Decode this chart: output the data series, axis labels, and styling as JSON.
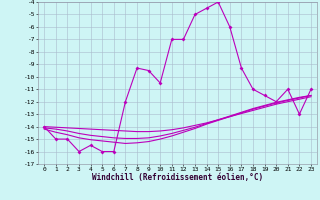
{
  "xlabel": "Windchill (Refroidissement éolien,°C)",
  "x": [
    0,
    1,
    2,
    3,
    4,
    5,
    6,
    7,
    8,
    9,
    10,
    11,
    12,
    13,
    14,
    15,
    16,
    17,
    18,
    19,
    20,
    21,
    22,
    23
  ],
  "windchill": [
    -14,
    -15,
    -15,
    -16,
    -15.5,
    -16,
    -16,
    -12,
    -9.3,
    -9.5,
    -10.5,
    -7,
    -7,
    -5,
    -4.5,
    -4,
    -6,
    -9.3,
    -11,
    -11.5,
    -12,
    -11,
    -13,
    -11
  ],
  "temp_line1": [
    -14.0,
    -14.05,
    -14.1,
    -14.15,
    -14.2,
    -14.25,
    -14.3,
    -14.35,
    -14.4,
    -14.4,
    -14.35,
    -14.25,
    -14.1,
    -13.9,
    -13.7,
    -13.45,
    -13.2,
    -12.95,
    -12.7,
    -12.45,
    -12.2,
    -12.0,
    -11.8,
    -11.6
  ],
  "temp_line2": [
    -14.1,
    -14.2,
    -14.35,
    -14.55,
    -14.7,
    -14.8,
    -14.9,
    -14.95,
    -14.95,
    -14.9,
    -14.75,
    -14.55,
    -14.3,
    -14.05,
    -13.75,
    -13.45,
    -13.15,
    -12.85,
    -12.55,
    -12.3,
    -12.05,
    -11.85,
    -11.65,
    -11.5
  ],
  "temp_line3": [
    -14.2,
    -14.45,
    -14.65,
    -14.9,
    -15.05,
    -15.15,
    -15.25,
    -15.35,
    -15.3,
    -15.2,
    -15.0,
    -14.75,
    -14.45,
    -14.15,
    -13.8,
    -13.5,
    -13.2,
    -12.9,
    -12.6,
    -12.35,
    -12.1,
    -11.9,
    -11.7,
    -11.5
  ],
  "ylim": [
    -17,
    -4
  ],
  "xlim": [
    -0.5,
    23.5
  ],
  "bg_color": "#cef5f5",
  "line_color": "#bb00bb",
  "grid_color": "#aabbcc",
  "yticks": [
    -4,
    -5,
    -6,
    -7,
    -8,
    -9,
    -10,
    -11,
    -12,
    -13,
    -14,
    -15,
    -16,
    -17
  ],
  "xticks": [
    0,
    1,
    2,
    3,
    4,
    5,
    6,
    7,
    8,
    9,
    10,
    11,
    12,
    13,
    14,
    15,
    16,
    17,
    18,
    19,
    20,
    21,
    22,
    23
  ],
  "tick_fontsize": 4.5,
  "label_fontsize": 5.5
}
